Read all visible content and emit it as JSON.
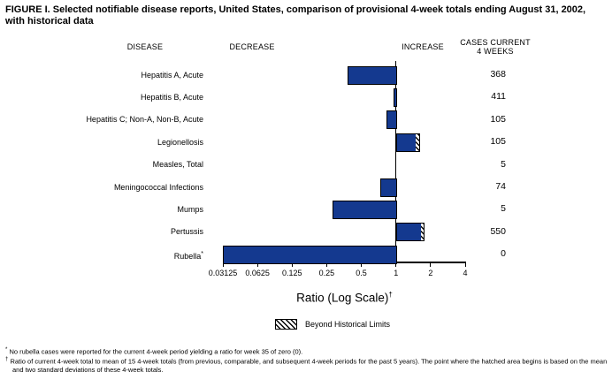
{
  "title": "FIGURE I. Selected notifiable disease reports, United States, comparison of provisional 4-week totals ending August 31, 2002, with historical data",
  "columns": {
    "disease": "DISEASE",
    "decrease": "DECREASE",
    "increase": "INCREASE",
    "cases_line1": "CASES CURRENT",
    "cases_line2": "4 WEEKS"
  },
  "chart_data": {
    "type": "bar",
    "orientation": "horizontal",
    "x_scale": "log2",
    "xlabel": "Ratio (Log Scale)",
    "xlabel_footnote": "†",
    "x_ticks": [
      0.03125,
      0.0625,
      0.125,
      0.25,
      0.5,
      1,
      2,
      4
    ],
    "x_tick_labels": [
      "0.03125",
      "0.0625",
      "0.125",
      "0.25",
      "0.5",
      "1",
      "2",
      "4"
    ],
    "baseline_ratio": 1,
    "legend": {
      "label": "Beyond Historical Limits",
      "swatch": "hatched"
    },
    "rows": [
      {
        "disease": "Hepatitis A, Acute",
        "cases": 368,
        "ratio": 0.38
      },
      {
        "disease": "Hepatitis B, Acute",
        "cases": 411,
        "ratio": 0.95
      },
      {
        "disease": "Hepatitis C; Non-A, Non-B, Acute",
        "cases": 105,
        "ratio": 0.82
      },
      {
        "disease": "Legionellosis",
        "cases": 105,
        "ratio": 1.61,
        "hatch_start": 1.48,
        "beyond_historical_limits": true
      },
      {
        "disease": "Measles, Total",
        "cases": 5,
        "ratio": null
      },
      {
        "disease": "Meningococcal Infections",
        "cases": 74,
        "ratio": 0.73
      },
      {
        "disease": "Mumps",
        "cases": 5,
        "ratio": 0.28
      },
      {
        "disease": "Pertussis",
        "cases": 550,
        "ratio": 1.76,
        "hatch_start": 1.64,
        "beyond_historical_limits": true
      },
      {
        "disease": "Rubella",
        "cases": 0,
        "ratio": 0.03125,
        "footnote_marker": "*",
        "off_scale_zero": true
      }
    ]
  },
  "footnotes": [
    {
      "marker": "*",
      "text": "No rubella cases were reported for the current 4-week period yielding a ratio for week 35 of zero (0)."
    },
    {
      "marker": "†",
      "text": "Ratio of current 4-week total to mean of 15 4-week totals (from previous, comparable, and subsequent 4-week periods for the past 5 years). The point where the hatched area begins is based on the mean and two standard deviations of these 4-week totals."
    }
  ],
  "colors": {
    "bar_fill": "#14398f",
    "bar_border": "#000000",
    "background": "#ffffff",
    "text": "#000000"
  }
}
